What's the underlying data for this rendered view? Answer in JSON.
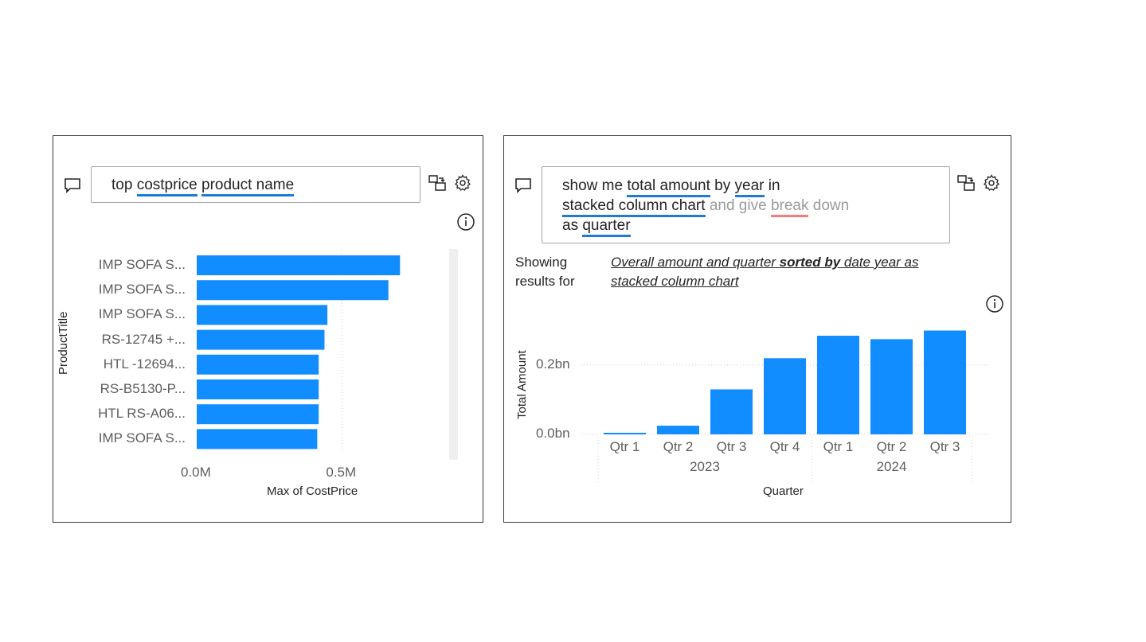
{
  "left_panel": {
    "query_words": [
      {
        "text": "top",
        "underline": "none"
      },
      {
        "text": "costprice",
        "underline": "blue"
      },
      {
        "text": "product name",
        "underline": "blue"
      }
    ],
    "chart_data": {
      "type": "bar",
      "orientation": "horizontal",
      "categories": [
        "IMP SOFA S...",
        "IMP SOFA S...",
        "IMP SOFA S...",
        "RS-12745 +...",
        "HTL -12694...",
        "RS-B5130-P...",
        "HTL RS-A06...",
        "IMP SOFA S..."
      ],
      "values": [
        0.7,
        0.66,
        0.45,
        0.44,
        0.42,
        0.42,
        0.42,
        0.415
      ],
      "value_unit": "M",
      "xlabel": "Max of CostPrice",
      "ylabel": "ProductTitle",
      "xticks": [
        "0.0M",
        "0.5M"
      ],
      "xlim": [
        0,
        0.85
      ],
      "color": "#118dff",
      "grid": "vertical dotted"
    }
  },
  "right_panel": {
    "query_lines": [
      [
        {
          "text": "show me ",
          "style": "normal"
        },
        {
          "text": "total amount",
          "style": "blue"
        },
        {
          "text": " by ",
          "style": "normal"
        },
        {
          "text": "year",
          "style": "blue"
        },
        {
          "text": " in",
          "style": "normal"
        }
      ],
      [
        {
          "text": "stacked column chart",
          "style": "blue"
        },
        {
          "text": " and give ",
          "style": "grey"
        },
        {
          "text": "break",
          "style": "grey-red"
        },
        {
          "text": " down",
          "style": "grey"
        }
      ],
      [
        {
          "text": "as ",
          "style": "normal"
        },
        {
          "text": "quarter",
          "style": "blue"
        }
      ]
    ],
    "showing_label": [
      "Showing",
      "results for"
    ],
    "restatement": {
      "line1_a": "Overall amount and quarter ",
      "line1_b": "sorted by",
      "line1_c": " date year as",
      "line2": "stacked column chart"
    },
    "chart_data": {
      "type": "bar",
      "orientation": "vertical",
      "categories": [
        "Qtr 1",
        "Qtr 2",
        "Qtr 3",
        "Qtr 4",
        "Qtr 1",
        "Qtr 2",
        "Qtr 3"
      ],
      "groups": [
        {
          "label": "2023",
          "count": 4
        },
        {
          "label": "2024",
          "count": 3
        }
      ],
      "values": [
        0.004,
        0.025,
        0.13,
        0.22,
        0.285,
        0.275,
        0.3
      ],
      "value_unit": "bn",
      "ylabel": "Total Amount",
      "xlabel": "Quarter",
      "yticks": [
        {
          "value": 0.0,
          "label": "0.0bn"
        },
        {
          "value": 0.2,
          "label": "0.2bn"
        }
      ],
      "ylim": [
        0,
        0.31
      ],
      "color": "#118dff",
      "grid": "horizontal dotted"
    }
  }
}
